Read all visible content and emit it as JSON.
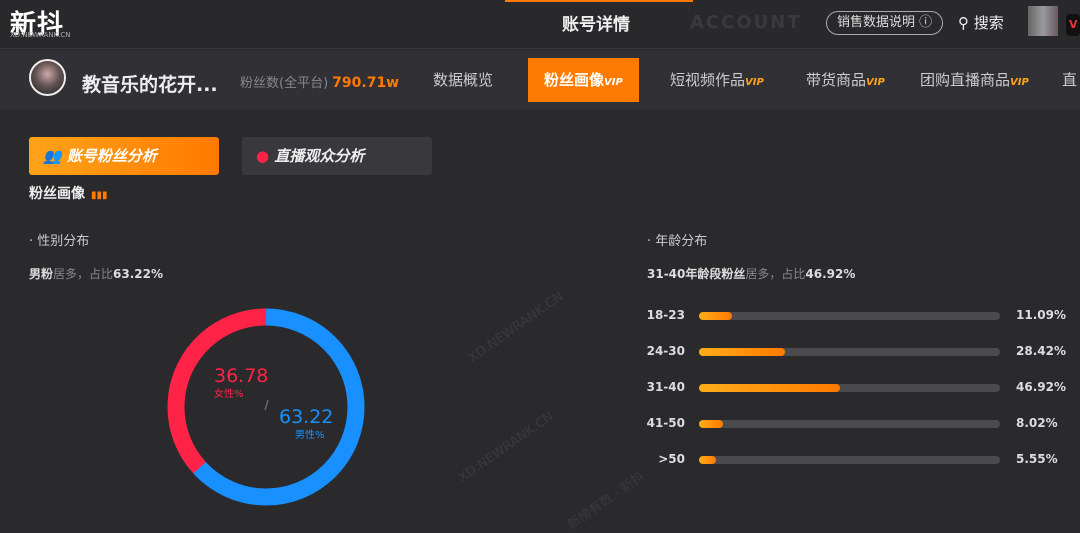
{
  "header": {
    "logo": "新抖",
    "logo_sub": "XD.NEWRANK.CN",
    "ghost": "ACCOUNT",
    "title": "账号详情",
    "explain": "销售数据说明",
    "search": "搜索",
    "vip_badge": "V"
  },
  "account": {
    "name": "教音乐的花开...",
    "fans_label": "粉丝数(全平台)",
    "fans_value": "790.71w"
  },
  "tabs": [
    {
      "label": "数据概览",
      "vip": ""
    },
    {
      "label": "粉丝画像",
      "vip": "VIP",
      "active": true
    },
    {
      "label": "短视频作品",
      "vip": "VIP"
    },
    {
      "label": "带货商品",
      "vip": "VIP"
    },
    {
      "label": "团购直播商品",
      "vip": "VIP"
    },
    {
      "label": "直",
      "vip": ""
    }
  ],
  "subtabs": [
    "账号粉丝分析",
    "直播观众分析"
  ],
  "section_title": "粉丝画像",
  "gender": {
    "heading": "性别分布",
    "summary_a": "男粉",
    "summary_b": "居多，占比",
    "summary_c": "63.22%",
    "female_value": "36.78",
    "female_label": "女性%",
    "male_value": "63.22",
    "male_label": "男性%",
    "female": 36.78,
    "male": 63.22,
    "colors": {
      "female": "#ff2347",
      "male": "#1890ff"
    }
  },
  "age": {
    "heading": "年龄分布",
    "summary_a": "31-40年龄段粉丝",
    "summary_b": "居多，占比",
    "summary_c": "46.92%",
    "rows": [
      {
        "label": "18-23",
        "value": 11.09,
        "text": "11.09%"
      },
      {
        "label": "24-30",
        "value": 28.42,
        "text": "28.42%"
      },
      {
        "label": "31-40",
        "value": 46.92,
        "text": "46.92%"
      },
      {
        "label": "41-50",
        "value": 8.02,
        "text": "8.02%"
      },
      {
        "label": ">50",
        "value": 5.55,
        "text": "5.55%"
      }
    ]
  },
  "watermarks": [
    "XD.NEWRANK.CN",
    "新榜有数 · 新抖"
  ]
}
